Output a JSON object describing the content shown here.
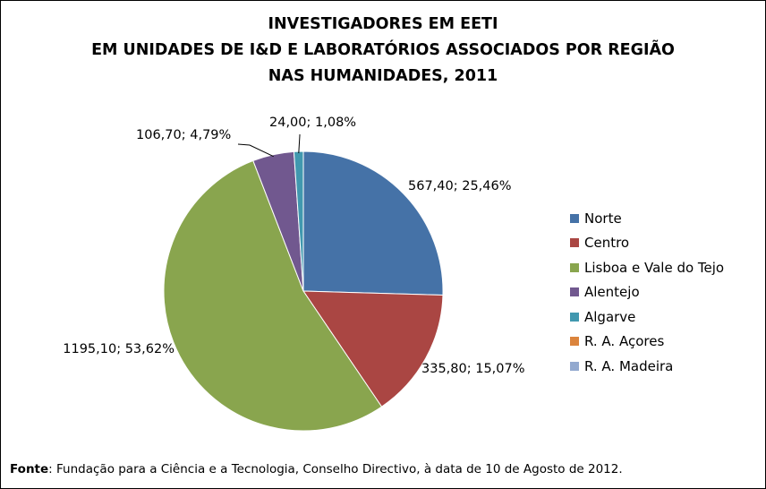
{
  "chart_data": {
    "type": "pie",
    "title_lines": [
      "INVESTIGADORES EM EETI",
      "EM UNIDADES DE I&D E LABORATÓRIOS ASSOCIADOS POR REGIÃO",
      "NAS HUMANIDADES, 2011"
    ],
    "slices": [
      {
        "label": "Norte",
        "value": 567.4,
        "percent": 25.46,
        "data_label": "567,40; 25,46%",
        "color": "#4572A7"
      },
      {
        "label": "Centro",
        "value": 335.8,
        "percent": 15.07,
        "data_label": "335,80; 15,07%",
        "color": "#AA4643"
      },
      {
        "label": "Lisboa e Vale do Tejo",
        "value": 1195.1,
        "percent": 53.62,
        "data_label": "1195,10; 53,62%",
        "color": "#89A54E"
      },
      {
        "label": "Alentejo",
        "value": 106.7,
        "percent": 4.79,
        "data_label": "106,70; 4,79%",
        "color": "#71588F"
      },
      {
        "label": "Algarve",
        "value": 24.0,
        "percent": 1.08,
        "data_label": "24,00; 1,08%",
        "color": "#4198AF"
      },
      {
        "label": "R. A. Açores",
        "value": 0,
        "percent": 0,
        "data_label": "",
        "color": "#DB843D"
      },
      {
        "label": "R. A. Madeira",
        "value": 0,
        "percent": 0,
        "data_label": "",
        "color": "#93A9CF"
      }
    ],
    "legend_position": "right"
  },
  "source": {
    "label": "Fonte",
    "text": ": Fundação para a Ciência e a Tecnologia, Conselho Directivo, à data de 10 de Agosto de 2012."
  }
}
